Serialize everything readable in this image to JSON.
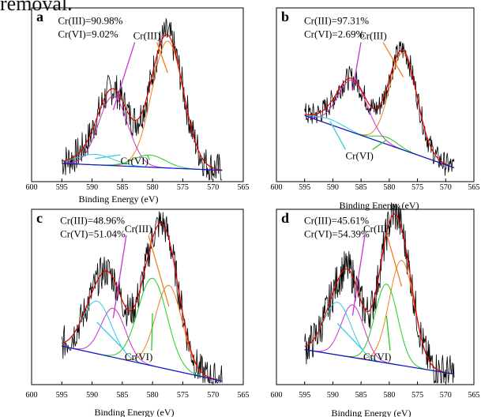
{
  "caption_fragment": "removal.",
  "colors": {
    "raw": "#000000",
    "envelope": "#e00000",
    "fit_main": "#f08020",
    "fit_cr3_2": "#cc33cc",
    "cr6_a": "#33ccdd",
    "cr6_b": "#22cc22",
    "baseline": "#1010cc"
  },
  "chart_data": [
    {
      "panel": "a",
      "type": "line",
      "annotation_lines": [
        "Cr(III)=90.98%",
        "Cr(VI)=9.02%"
      ],
      "cr3_label": "Cr(III)",
      "cr6_label": "Cr(VI)",
      "xlabel": "Binding Energy (eV)",
      "xlim": [
        600,
        565
      ],
      "x_ticks": [
        600,
        595,
        590,
        585,
        580,
        575,
        570,
        565
      ],
      "y_range": [
        0,
        100
      ],
      "baseline": [
        [
          595,
          10.5
        ],
        [
          568.5,
          6.5
        ]
      ],
      "peaks": [
        {
          "color": "fit_main",
          "center": 577.5,
          "height": 73,
          "sigma": 2.6
        },
        {
          "color": "fit_cr3_2",
          "center": 586.5,
          "height": 40,
          "sigma": 2.4
        },
        {
          "color": "cr6_a",
          "center": 589.5,
          "height": 6,
          "sigma": 3.0
        },
        {
          "color": "cr6_b",
          "center": 580.5,
          "height": 7,
          "sigma": 2.6
        }
      ],
      "noise": 10
    },
    {
      "panel": "b",
      "type": "line",
      "annotation_lines": [
        "Cr(III)=97.31%",
        "Cr(VI)=2.69%"
      ],
      "cr3_label": "Cr(III)",
      "cr6_label": "Cr(VI)",
      "xlabel": "Binding Energy (eV)",
      "xlim": [
        600,
        565
      ],
      "x_ticks": [
        600,
        595,
        590,
        585,
        580,
        575,
        570,
        565
      ],
      "y_range": [
        0,
        100
      ],
      "baseline": [
        [
          595,
          38
        ],
        [
          568.5,
          8
        ]
      ],
      "peaks": [
        {
          "color": "fit_main",
          "center": 577.5,
          "height": 56,
          "sigma": 2.4
        },
        {
          "color": "fit_cr3_2",
          "center": 586.5,
          "height": 30,
          "sigma": 2.6
        },
        {
          "color": "cr6_a",
          "center": 590.5,
          "height": 3,
          "sigma": 2.5
        },
        {
          "color": "cr6_b",
          "center": 580.5,
          "height": 4,
          "sigma": 2.0
        }
      ],
      "noise": 7
    },
    {
      "panel": "c",
      "type": "line",
      "annotation_lines": [
        "Cr(III)=48.96%",
        "Cr(VI)=51.04%"
      ],
      "cr3_label": "Cr(III)",
      "cr6_label": "Cr(VI)",
      "xlabel": "Binding Energy (eV)",
      "xlim": [
        600,
        565
      ],
      "x_ticks": [
        600,
        595,
        590,
        585,
        580,
        575,
        570,
        565
      ],
      "y_range": [
        0,
        100
      ],
      "baseline": [
        [
          595,
          22
        ],
        [
          568.5,
          2
        ]
      ],
      "peaks": [
        {
          "color": "fit_main",
          "center": 577.3,
          "height": 48,
          "sigma": 2.2
        },
        {
          "color": "fit_cr3_2",
          "center": 586.5,
          "height": 28,
          "sigma": 2.0
        },
        {
          "color": "cr6_a",
          "center": 589.2,
          "height": 30,
          "sigma": 2.4
        },
        {
          "color": "cr6_b",
          "center": 580.0,
          "height": 50,
          "sigma": 2.4
        }
      ],
      "noise": 10
    },
    {
      "panel": "d",
      "type": "line",
      "annotation_lines": [
        "Cr(III)=45.61%",
        "Cr(VI)=54.39%"
      ],
      "cr3_label": "Cr(III)",
      "cr6_label": "Cr(VI)",
      "xlabel": "Binding Energy (eV)",
      "xlim": [
        600,
        565
      ],
      "x_ticks": [
        600,
        595,
        590,
        585,
        580,
        575,
        570,
        565
      ],
      "y_range": [
        0,
        100
      ],
      "baseline": [
        [
          595,
          20
        ],
        [
          568.5,
          6
        ]
      ],
      "peaks": [
        {
          "color": "fit_main",
          "center": 577.8,
          "height": 60,
          "sigma": 2.2
        },
        {
          "color": "fit_cr3_2",
          "center": 586.5,
          "height": 30,
          "sigma": 2.0
        },
        {
          "color": "cr6_a",
          "center": 589.2,
          "height": 30,
          "sigma": 2.4
        },
        {
          "color": "cr6_b",
          "center": 580.5,
          "height": 45,
          "sigma": 2.0
        }
      ],
      "noise": 11
    }
  ]
}
